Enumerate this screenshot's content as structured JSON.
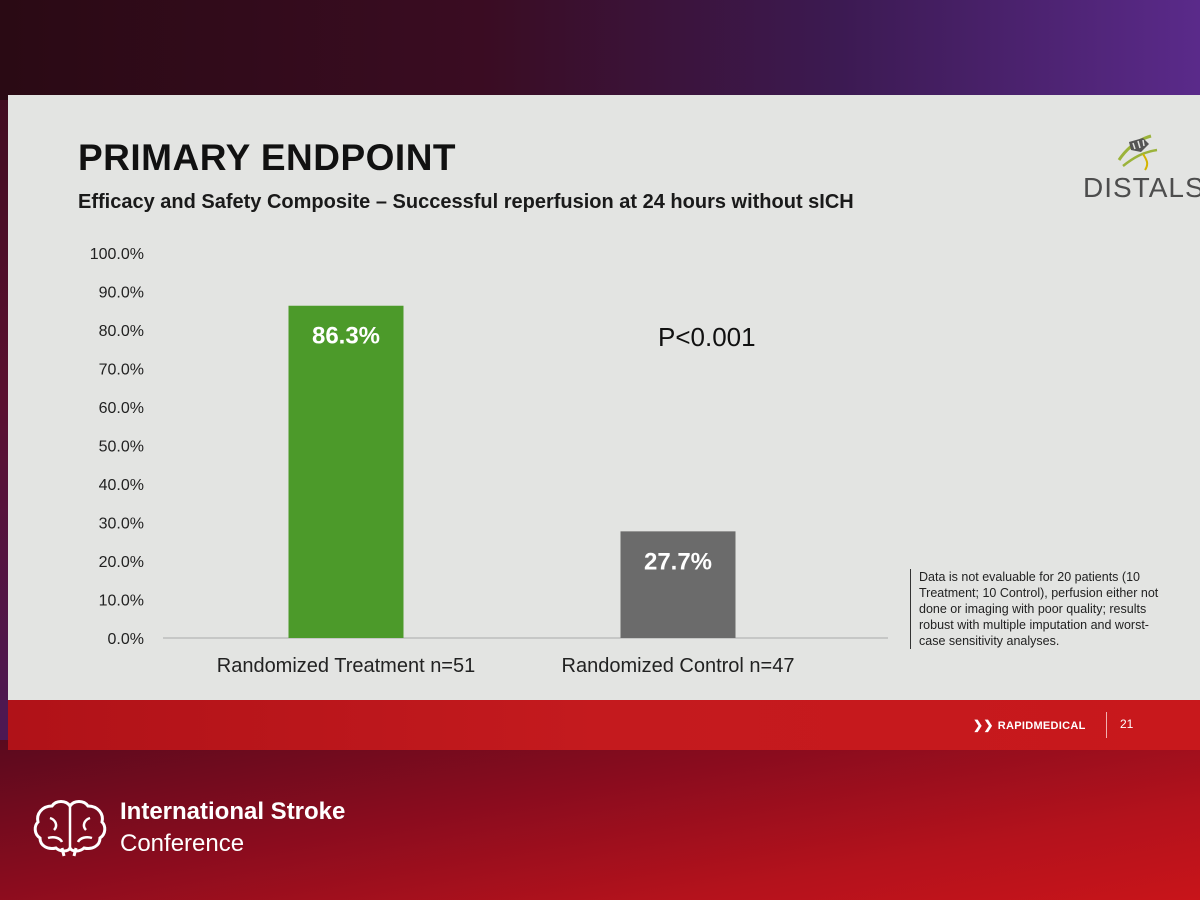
{
  "slide": {
    "title": "PRIMARY ENDPOINT",
    "subtitle": "Efficacy and Safety Composite – Successful reperfusion at 24 hours without sICH",
    "logo_text": "DISTALS",
    "annotation": "P<0.001",
    "footnote": "Data is not evaluable for 20 patients (10 Treatment; 10 Control), perfusion either not done or imaging with poor quality; results robust with multiple imputation and worst-case sensitivity analyses.",
    "brand": "RAPIDMEDICAL",
    "page_number": "21"
  },
  "conference": {
    "line1": "International Stroke",
    "line2": "Conference"
  },
  "chart_data": {
    "type": "bar",
    "categories": [
      "Randomized Treatment n=51",
      "Randomized Control n=47"
    ],
    "values": [
      86.3,
      27.7
    ],
    "data_labels": [
      "86.3%",
      "27.7%"
    ],
    "bar_colors": [
      "#4c9a2a",
      "#6b6b6b"
    ],
    "ylim": [
      0,
      100
    ],
    "yticks": [
      "0.0%",
      "10.0%",
      "20.0%",
      "30.0%",
      "40.0%",
      "50.0%",
      "60.0%",
      "70.0%",
      "80.0%",
      "90.0%",
      "100.0%"
    ],
    "grid": false,
    "legend": "none"
  }
}
